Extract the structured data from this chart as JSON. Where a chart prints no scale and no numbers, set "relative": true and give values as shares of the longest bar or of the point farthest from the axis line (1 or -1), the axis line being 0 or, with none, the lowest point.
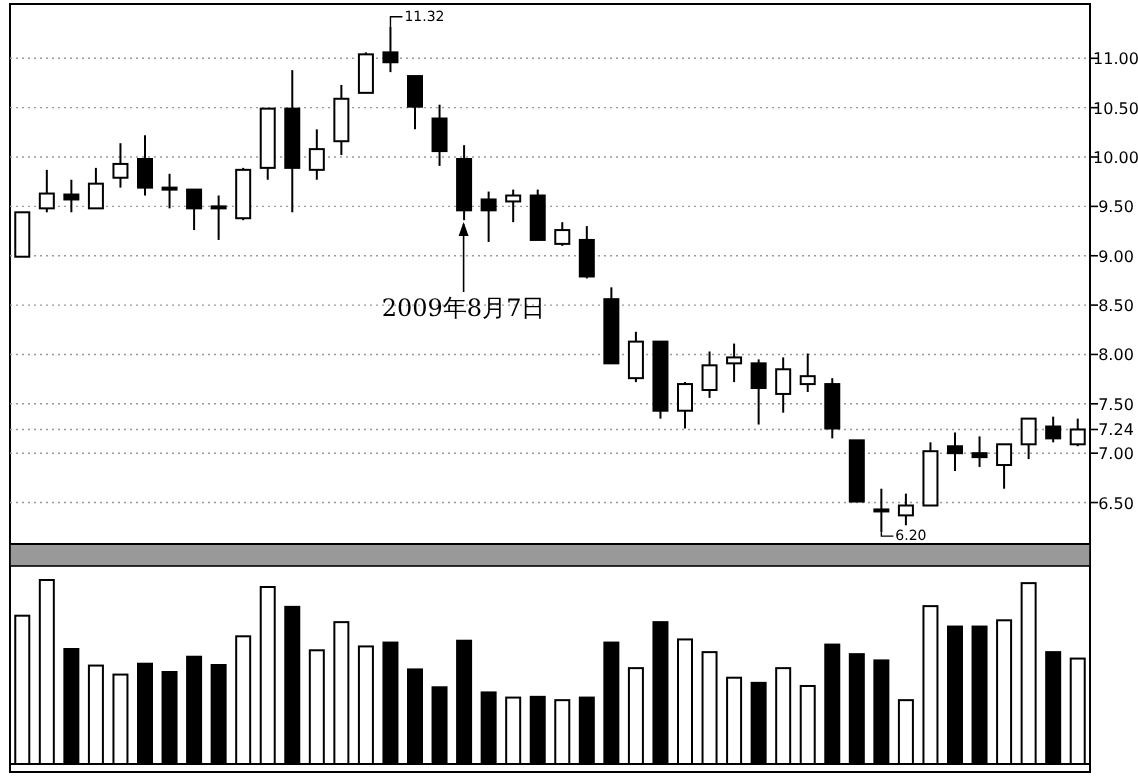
{
  "chart_data": [
    {
      "type": "candlestick",
      "categories": [
        null,
        null,
        null,
        null,
        null,
        null,
        null,
        null,
        null,
        null,
        null,
        null,
        null,
        null,
        null,
        null,
        null,
        null,
        null,
        null,
        null,
        null,
        null,
        null,
        null,
        null,
        null,
        null,
        null,
        null,
        null,
        null,
        null,
        null,
        null,
        null,
        null,
        null,
        null,
        null,
        null,
        null,
        null,
        null
      ],
      "ohlc": [
        [
          8.99,
          9.44,
          8.99,
          9.44
        ],
        [
          9.48,
          9.87,
          9.44,
          9.63
        ],
        [
          9.62,
          9.77,
          9.44,
          9.57
        ],
        [
          9.48,
          9.89,
          9.48,
          9.73
        ],
        [
          9.79,
          10.14,
          9.69,
          9.93
        ],
        [
          9.98,
          10.22,
          9.61,
          9.69
        ],
        [
          9.69,
          9.83,
          9.48,
          9.67
        ],
        [
          9.67,
          9.67,
          9.26,
          9.48
        ],
        [
          9.5,
          9.61,
          9.16,
          9.48
        ],
        [
          9.38,
          9.89,
          9.36,
          9.87
        ],
        [
          9.89,
          10.49,
          9.77,
          10.49
        ],
        [
          10.49,
          10.88,
          9.44,
          9.89
        ],
        [
          9.87,
          10.28,
          9.77,
          10.08
        ],
        [
          10.16,
          10.73,
          10.02,
          10.59
        ],
        [
          10.65,
          11.06,
          10.65,
          11.04
        ],
        [
          11.06,
          11.32,
          10.86,
          10.96
        ],
        [
          10.82,
          10.82,
          10.28,
          10.51
        ],
        [
          10.39,
          10.53,
          9.91,
          10.06
        ],
        [
          9.98,
          10.12,
          9.36,
          9.46
        ],
        [
          9.57,
          9.65,
          9.14,
          9.46
        ],
        [
          9.55,
          9.67,
          9.34,
          9.61
        ],
        [
          9.61,
          9.67,
          9.16,
          9.16
        ],
        [
          9.12,
          9.34,
          9.1,
          9.26
        ],
        [
          9.16,
          9.3,
          8.77,
          8.79
        ],
        [
          8.56,
          8.68,
          7.91,
          7.91
        ],
        [
          7.76,
          8.23,
          7.72,
          8.13
        ],
        [
          8.13,
          8.13,
          7.35,
          7.43
        ],
        [
          7.43,
          7.72,
          7.25,
          7.7
        ],
        [
          7.64,
          8.03,
          7.56,
          7.89
        ],
        [
          7.91,
          8.11,
          7.72,
          7.97
        ],
        [
          7.91,
          7.95,
          7.29,
          7.66
        ],
        [
          7.6,
          7.97,
          7.41,
          7.85
        ],
        [
          7.7,
          8.01,
          7.62,
          7.78
        ],
        [
          7.7,
          7.76,
          7.15,
          7.25
        ],
        [
          7.13,
          7.13,
          6.51,
          6.51
        ],
        [
          6.43,
          6.64,
          6.2,
          6.41
        ],
        [
          6.37,
          6.59,
          6.27,
          6.47
        ],
        [
          6.47,
          7.11,
          6.47,
          7.02
        ],
        [
          7.07,
          7.21,
          6.82,
          7.0
        ],
        [
          7.0,
          7.17,
          6.86,
          6.96
        ],
        [
          6.88,
          7.09,
          6.64,
          7.09
        ],
        [
          7.09,
          7.35,
          6.94,
          7.35
        ],
        [
          7.27,
          7.37,
          7.11,
          7.15
        ],
        [
          7.09,
          7.35,
          7.07,
          7.24
        ]
      ],
      "ylim": [
        6.08,
        11.55
      ],
      "yticks": [
        {
          "value": 6.5,
          "label": "6.50"
        },
        {
          "value": 7,
          "label": "7.00"
        },
        {
          "value": 7.24,
          "label": "7.24"
        },
        {
          "value": 7.5,
          "label": "7.50"
        },
        {
          "value": 8,
          "label": "8.00"
        },
        {
          "value": 8.5,
          "label": "8.50"
        },
        {
          "value": 9,
          "label": "9.00"
        },
        {
          "value": 9.5,
          "label": "9.50"
        },
        {
          "value": 10,
          "label": "10.00"
        },
        {
          "value": 10.5,
          "label": "10.50"
        },
        {
          "value": 11,
          "label": "11.00"
        }
      ],
      "grid": "y",
      "annotations": [
        "11.32",
        "6.20",
        "2009年8月7日"
      ]
    },
    {
      "type": "bar",
      "relative": true,
      "categories": [
        null,
        null,
        null,
        null,
        null,
        null,
        null,
        null,
        null,
        null,
        null,
        null,
        null,
        null,
        null,
        null,
        null,
        null,
        null,
        null,
        null,
        null,
        null,
        null,
        null,
        null,
        null,
        null,
        null,
        null,
        null,
        null,
        null,
        null,
        null,
        null,
        null,
        null,
        null,
        null,
        null,
        null,
        null,
        null
      ],
      "values": [
        0.806,
        1,
        0.625,
        0.535,
        0.486,
        0.545,
        0.5,
        0.583,
        0.538,
        0.694,
        0.962,
        0.854,
        0.618,
        0.771,
        0.639,
        0.66,
        0.514,
        0.417,
        0.67,
        0.389,
        0.361,
        0.365,
        0.347,
        0.361,
        0.66,
        0.521,
        0.771,
        0.677,
        0.608,
        0.469,
        0.441,
        0.521,
        0.424,
        0.649,
        0.597,
        0.563,
        0.347,
        0.858,
        0.747,
        0.747,
        0.781,
        0.983,
        0.608,
        0.573
      ],
      "colors": [
        "#ffffff",
        "#ffffff",
        "#000000",
        "#ffffff",
        "#ffffff",
        "#000000",
        "#000000",
        "#000000",
        "#000000",
        "#ffffff",
        "#ffffff",
        "#000000",
        "#ffffff",
        "#ffffff",
        "#ffffff",
        "#000000",
        "#000000",
        "#000000",
        "#000000",
        "#000000",
        "#ffffff",
        "#000000",
        "#ffffff",
        "#000000",
        "#000000",
        "#ffffff",
        "#000000",
        "#ffffff",
        "#ffffff",
        "#ffffff",
        "#000000",
        "#ffffff",
        "#ffffff",
        "#000000",
        "#000000",
        "#000000",
        "#ffffff",
        "#ffffff",
        "#000000",
        "#000000",
        "#ffffff",
        "#ffffff",
        "#000000",
        "#ffffff"
      ]
    }
  ]
}
